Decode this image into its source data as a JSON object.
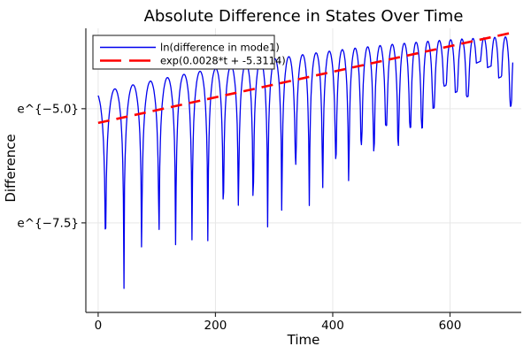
{
  "chart_data": {
    "type": "line",
    "title": "Absolute Difference in States Over Time",
    "xlabel": "Time",
    "ylabel": "Difference",
    "y_scale": "natural-log (values shown as e^{v})",
    "xlim": [
      -21,
      721.5
    ],
    "ylim": [
      -9.46,
      -3.24
    ],
    "grid": true,
    "background": "#ffffff",
    "axis_color": "#2a2a2a",
    "grid_color": "#e7e7e7",
    "x_ticks": [
      {
        "value": 0,
        "label": "0"
      },
      {
        "value": 200,
        "label": "200"
      },
      {
        "value": 400,
        "label": "400"
      },
      {
        "value": 600,
        "label": "600"
      }
    ],
    "y_ticks": [
      {
        "value": -5.0,
        "label": "e^{−5.0}"
      },
      {
        "value": -7.5,
        "label": "e^{−7.5}"
      }
    ],
    "legend": {
      "position": "top-left",
      "border_color": "#2a2a2a",
      "entries": [
        {
          "label": "ln(difference in mode1)",
          "color": "#0000ee",
          "dash": false
        },
        {
          "label": "exp(0.0028*t + -5.3114)",
          "color": "#ff0000",
          "dash": true
        }
      ]
    },
    "series": [
      {
        "name": "ln(difference in mode1)",
        "color": "#0000ee",
        "style": "solid",
        "width": 1.3,
        "model": "ln|diff|(t) = env(t) + ln(max(|cos(phase(t))|, exp(-dip)))  — oscillating arches with sharp downward cusps at zero crossings; cusp depth shrinks with t (undersampled beats)",
        "t_start": 0,
        "t_end": 707,
        "dt": 1,
        "env_coeffs": [
          -4.65,
          0.003024,
          -1.817e-06
        ],
        "phase_coeffs": [
          0.35,
          0.097,
          5.5e-05
        ],
        "dip_base": 4.55,
        "dip_slope": 0.0052,
        "dip_jitter": 1.3,
        "dip_min": 0.4,
        "peak_start_ln": -4.65,
        "peak_end_ln": -3.42,
        "deepest_cusp_ln": -9.26
      },
      {
        "name": "exp(0.0028*t + -5.3114)",
        "color": "#ff0000",
        "style": "dashed",
        "width": 2.6,
        "dash_array": "13 8",
        "slope": 0.0028,
        "intercept": -5.3114,
        "t_start": 0,
        "t_end": 711,
        "ln_at_t0": -5.3114,
        "ln_at_t700": -3.3514
      }
    ]
  }
}
